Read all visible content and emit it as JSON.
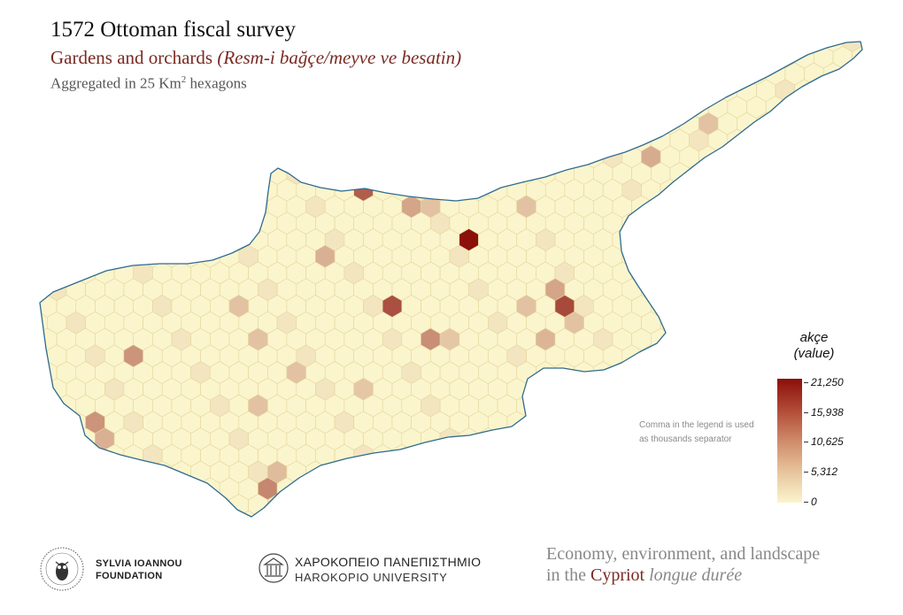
{
  "title": "1572 Ottoman fiscal survey",
  "subtitle_main": "Gardens and orchards",
  "subtitle_italic": "(Resm-i bağçe/meyve ve besatin)",
  "aggregation_prefix": "Aggregated in 25 Km",
  "aggregation_sup": "2",
  "aggregation_suffix": "hexagons",
  "legend": {
    "title_line1": "akçe",
    "title_line2": "(value)",
    "ticks": [
      "21,250",
      "15,938",
      "10,625",
      "5,312",
      "0"
    ],
    "color_max": "#8b0f0a",
    "color_min": "#fbf5cd"
  },
  "note": "Comma in the legend is used as thousands separator",
  "colors": {
    "hex_border": "#e3d59a",
    "coast": "#2f6b8f",
    "title_accent": "#7a2a22"
  },
  "footer": {
    "foundation_line1": "SYLVIA IOANNOU",
    "foundation_line2": "FOUNDATION",
    "university_greek": "ΧΑΡΟΚΟΠΕΙΟ ΠΑΝΕΠΙΣΤΗΜΙΟ",
    "university_english": "HAROKOPIO UNIVERSITY",
    "project_line1": "Economy, environment, and landscape",
    "project_line2_prefix": "in the",
    "project_line2_highlight": "Cypriot",
    "project_line2_suffix": "longue durée"
  }
}
